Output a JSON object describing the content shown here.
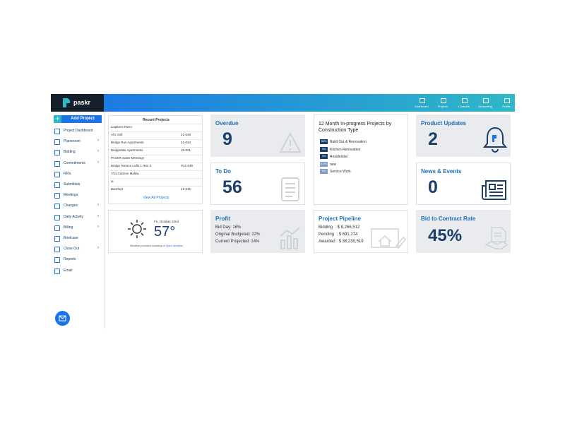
{
  "header": {
    "logo": "paskr",
    "nav": [
      "Dashboard",
      "Projects",
      "Contacts",
      "Accounting",
      "Profile"
    ]
  },
  "sidebar": {
    "add_button": "Add Project",
    "items": [
      {
        "label": "Project Dashboard",
        "has_submenu": false
      },
      {
        "label": "Plansroom",
        "has_submenu": true
      },
      {
        "label": "Bidding",
        "has_submenu": true
      },
      {
        "label": "Commitments",
        "has_submenu": true
      },
      {
        "label": "RFIs",
        "has_submenu": false
      },
      {
        "label": "Submittals",
        "has_submenu": false
      },
      {
        "label": "Meetings",
        "has_submenu": false
      },
      {
        "label": "Changes",
        "has_submenu": true
      },
      {
        "label": "Daily Activity",
        "has_submenu": true
      },
      {
        "label": "Billing",
        "has_submenu": true
      },
      {
        "label": "Briefcase",
        "has_submenu": false
      },
      {
        "label": "Close Out",
        "has_submenu": true
      },
      {
        "label": "Reports",
        "has_submenu": false
      },
      {
        "label": "Email",
        "has_submenu": false
      }
    ]
  },
  "recent_projects": {
    "title": "Recent Projects",
    "rows": [
      {
        "name": "Capitens Reno"
      },
      {
        "name": "Al's Grill",
        "code": "21-026"
      },
      {
        "name": "Bridge Run Apartments",
        "code": "21-034"
      },
      {
        "name": "Bridgedale Apartments",
        "code": "19-001"
      },
      {
        "name": "PASKR Sales Meetings"
      },
      {
        "name": "Bridge Terrace Lofts 1 Rev 3",
        "code": "P21-048"
      },
      {
        "name": "7/11 Catmon Malibu"
      },
      {
        "name": "ai"
      },
      {
        "name": "Barefoot",
        "code": "21-045"
      }
    ],
    "link": "View All Projects"
  },
  "weather": {
    "date": "Fri, October 22nd",
    "temperature": "57°",
    "credit": "Weather provided courtesy of",
    "credit_link": "Open Weather"
  },
  "overdue": {
    "title": "Overdue",
    "value": 9
  },
  "todo": {
    "title": "To Do",
    "value": 56
  },
  "construction_types": {
    "title": "12 Month In-progress Projects by Construction Type",
    "items": [
      {
        "percent": "56%",
        "label": "Build Out & Renovation"
      },
      {
        "percent": "3%",
        "label": "Kitchen Renovation"
      },
      {
        "percent": "3%",
        "label": "Residential"
      },
      {
        "percent": "0.2%",
        "label": "new"
      },
      {
        "percent": "0%",
        "label": "Service Work"
      }
    ]
  },
  "product_updates": {
    "title": "Product Updates",
    "value": 2
  },
  "news_events": {
    "title": "News & Events",
    "value": 0
  },
  "profit": {
    "title": "Profit",
    "lines": [
      "Bid Day: 16%",
      "Original Budgeted: 22%",
      "Current Projected: 14%"
    ]
  },
  "pipeline": {
    "title": "Project Pipeline",
    "lines": [
      "Bidding  : $ 8,266,512",
      "Pending  : $ 691,274",
      "Awarded : $ 38,230,519"
    ]
  },
  "bid_rate": {
    "title": "Bid to Contract Rate",
    "value": "45%"
  }
}
